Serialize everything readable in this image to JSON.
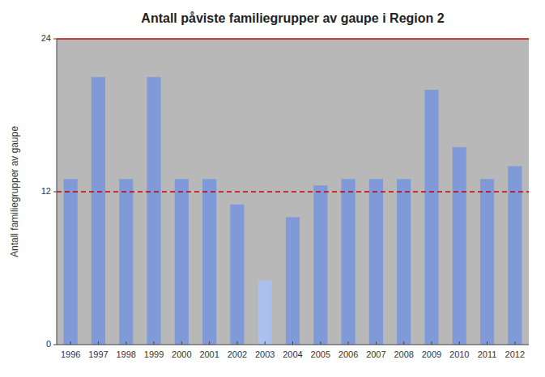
{
  "chart_data": {
    "type": "bar",
    "title": "Antall påviste familiegrupper av gaupe i Region 2",
    "y_label": "Antall familiegrupper av gaupe",
    "categories": [
      "1996",
      "1997",
      "1998",
      "1999",
      "2000",
      "2001",
      "2002",
      "2003",
      "2004",
      "2005",
      "2006",
      "2007",
      "2008",
      "2009",
      "2010",
      "2011",
      "2012"
    ],
    "values": [
      13,
      21,
      13,
      21,
      13,
      13,
      11,
      5,
      10,
      12.5,
      13,
      13,
      13,
      20,
      15.5,
      13,
      14
    ],
    "colors": [
      "#7f99d9",
      "#7f99d9",
      "#7f99d9",
      "#7f99d9",
      "#7f99d9",
      "#7f99d9",
      "#7f99d9",
      "#aac0ee",
      "#7f99d9",
      "#7f99d9",
      "#7f99d9",
      "#7f99d9",
      "#7f99d9",
      "#7f99d9",
      "#7f99d9",
      "#7f99d9",
      "#7f99d9"
    ],
    "reference_line": {
      "value": 12,
      "color": "#cc0000"
    },
    "ylim": [
      0,
      24
    ],
    "yticks": [
      0,
      12,
      24
    ],
    "grid": false
  }
}
